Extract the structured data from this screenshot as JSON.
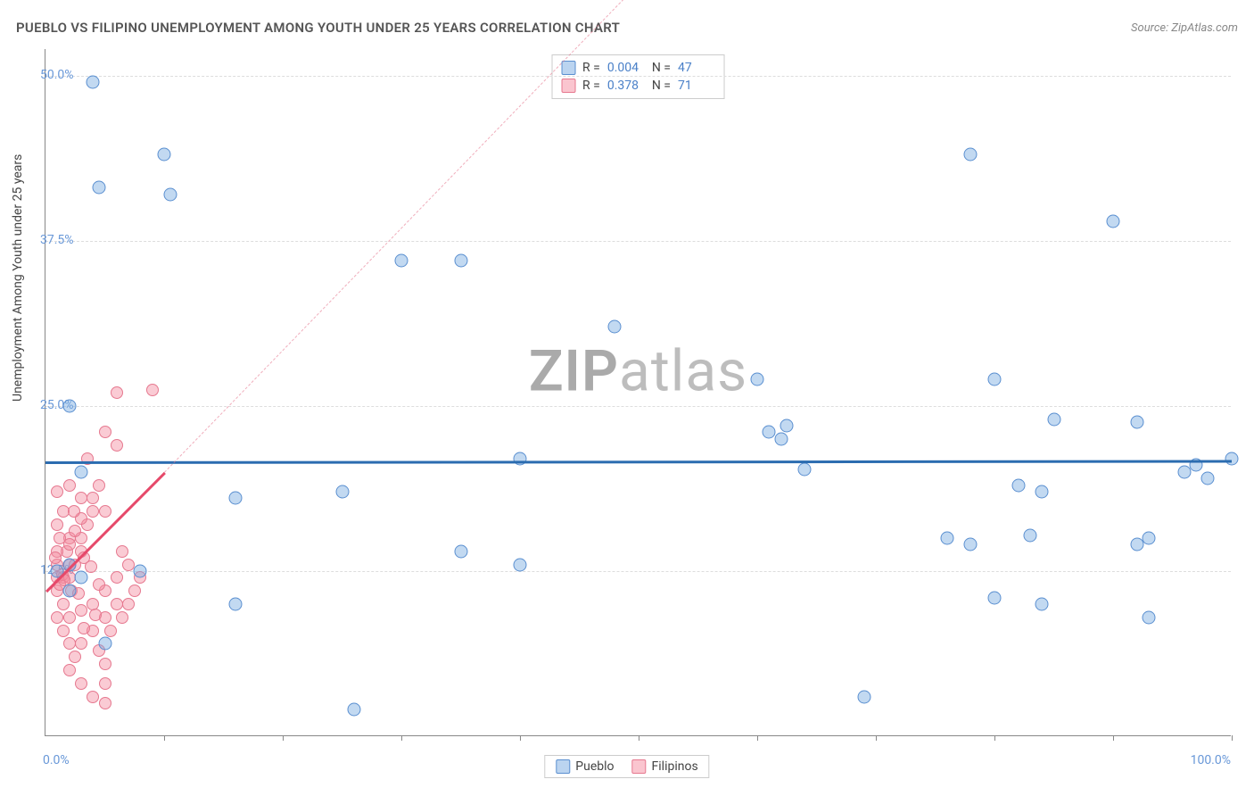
{
  "title": "PUEBLO VS FILIPINO UNEMPLOYMENT AMONG YOUTH UNDER 25 YEARS CORRELATION CHART",
  "source": "Source: ZipAtlas.com",
  "watermark_zip": "ZIP",
  "watermark_atlas": "atlas",
  "y_axis_title": "Unemployment Among Youth under 25 years",
  "chart": {
    "type": "scatter",
    "xlim": [
      0,
      100
    ],
    "ylim": [
      0,
      52
    ],
    "y_ticks": [
      {
        "v": 12.5,
        "label": "12.5%"
      },
      {
        "v": 25.0,
        "label": "25.0%"
      },
      {
        "v": 37.5,
        "label": "37.5%"
      },
      {
        "v": 50.0,
        "label": "50.0%"
      }
    ],
    "x_ticks_minor": [
      10,
      20,
      30,
      40,
      50,
      60,
      70,
      80,
      90,
      100
    ],
    "x_min_label": "0.0%",
    "x_max_label": "100.0%",
    "colors": {
      "pueblo_fill": "#78aae1",
      "pueblo_stroke": "#5a8fd0",
      "filipino_fill": "#f58ca0",
      "filipino_stroke": "#e6788f",
      "pueblo_trend": "#2b6cb0",
      "filipino_trend": "#e6496a",
      "grid": "#dddddd",
      "background": "#ffffff",
      "axis": "#888888",
      "tick_label": "#6998d8"
    }
  },
  "stats": {
    "rows": [
      {
        "swatch": "pueblo",
        "r_label": "R =",
        "r_value": "0.004",
        "n_label": "N =",
        "n_value": "47"
      },
      {
        "swatch": "filipino",
        "r_label": "R =",
        "r_value": "0.378",
        "n_label": "N =",
        "n_value": "71"
      }
    ]
  },
  "legend": {
    "items": [
      {
        "swatch": "pueblo",
        "label": "Pueblo"
      },
      {
        "swatch": "filipino",
        "label": "Filipinos"
      }
    ]
  },
  "trend_lines": {
    "pueblo": {
      "x1": 0,
      "y1": 20.8,
      "x2": 100,
      "y2": 20.9
    },
    "filipino": {
      "x1": 0,
      "y1": 11.0,
      "x2": 10,
      "y2": 20.0,
      "dash_x2": 50,
      "dash_y2": 57
    }
  },
  "series": {
    "pueblo": [
      [
        4,
        49.5
      ],
      [
        10,
        44
      ],
      [
        4.5,
        41.5
      ],
      [
        10.5,
        41
      ],
      [
        30,
        36
      ],
      [
        35,
        36
      ],
      [
        48,
        31
      ],
      [
        80,
        27
      ],
      [
        60,
        27
      ],
      [
        61,
        23
      ],
      [
        62.5,
        23.5
      ],
      [
        85,
        24
      ],
      [
        92,
        23.8
      ],
      [
        100,
        21
      ],
      [
        96,
        20
      ],
      [
        97,
        20.5
      ],
      [
        2,
        25
      ],
      [
        40,
        21
      ],
      [
        3,
        20
      ],
      [
        98,
        19.5
      ],
      [
        64,
        20.2
      ],
      [
        16,
        18
      ],
      [
        25,
        18.5
      ],
      [
        82,
        19
      ],
      [
        84,
        18.5
      ],
      [
        92,
        14.5
      ],
      [
        93,
        15
      ],
      [
        76,
        15
      ],
      [
        83,
        15.2
      ],
      [
        78,
        14.5
      ],
      [
        2,
        13
      ],
      [
        1,
        12.5
      ],
      [
        8,
        12.5
      ],
      [
        16,
        10
      ],
      [
        40,
        13
      ],
      [
        26,
        2
      ],
      [
        69,
        3
      ],
      [
        93,
        9
      ],
      [
        84,
        10
      ],
      [
        5,
        7
      ],
      [
        80,
        10.5
      ],
      [
        62,
        22.5
      ],
      [
        2,
        11
      ],
      [
        3,
        12
      ],
      [
        35,
        14
      ],
      [
        78,
        44
      ],
      [
        90,
        39
      ]
    ],
    "filipino": [
      [
        1,
        11
      ],
      [
        1,
        12
      ],
      [
        1.5,
        12
      ],
      [
        1,
        13
      ],
      [
        1.2,
        11.5
      ],
      [
        1.4,
        12.2
      ],
      [
        2,
        12
      ],
      [
        2,
        13
      ],
      [
        2.2,
        11
      ],
      [
        1.8,
        14
      ],
      [
        2.5,
        13
      ],
      [
        3,
        14
      ],
      [
        3,
        15
      ],
      [
        3.2,
        13.5
      ],
      [
        3.5,
        16
      ],
      [
        4,
        17
      ],
      [
        4,
        18
      ],
      [
        4.5,
        19
      ],
      [
        5,
        17
      ],
      [
        5,
        23
      ],
      [
        6,
        22
      ],
      [
        6,
        26
      ],
      [
        9,
        26.2
      ],
      [
        6.5,
        14
      ],
      [
        7,
        13
      ],
      [
        8,
        12
      ],
      [
        7.5,
        11
      ],
      [
        6,
        10
      ],
      [
        5,
        9
      ],
      [
        4,
        8
      ],
      [
        3,
        7
      ],
      [
        2.5,
        6
      ],
      [
        2,
        5
      ],
      [
        3,
        4
      ],
      [
        4,
        3
      ],
      [
        5,
        4
      ],
      [
        2,
        9
      ],
      [
        3,
        9.5
      ],
      [
        4,
        10
      ],
      [
        5,
        11
      ],
      [
        2,
        15
      ],
      [
        2.5,
        15.5
      ],
      [
        3,
        16.5
      ],
      [
        1.5,
        10
      ],
      [
        1,
        9
      ],
      [
        1.5,
        8
      ],
      [
        2,
        7
      ],
      [
        4.5,
        6.5
      ],
      [
        5.5,
        8
      ],
      [
        6,
        12
      ],
      [
        6.5,
        9
      ],
      [
        7,
        10
      ],
      [
        1,
        14
      ],
      [
        2,
        14.5
      ],
      [
        3,
        18
      ],
      [
        3.5,
        21
      ],
      [
        2,
        19
      ],
      [
        1,
        18.5
      ],
      [
        1.5,
        17
      ],
      [
        1,
        16
      ],
      [
        0.8,
        13.5
      ],
      [
        1.2,
        15
      ],
      [
        5,
        5.5
      ],
      [
        4.5,
        11.5
      ],
      [
        3.8,
        12.8
      ],
      [
        2.8,
        10.8
      ],
      [
        3.2,
        8.2
      ],
      [
        4.2,
        9.2
      ],
      [
        1.6,
        11.8
      ],
      [
        2.4,
        17
      ],
      [
        5,
        2.5
      ]
    ]
  }
}
